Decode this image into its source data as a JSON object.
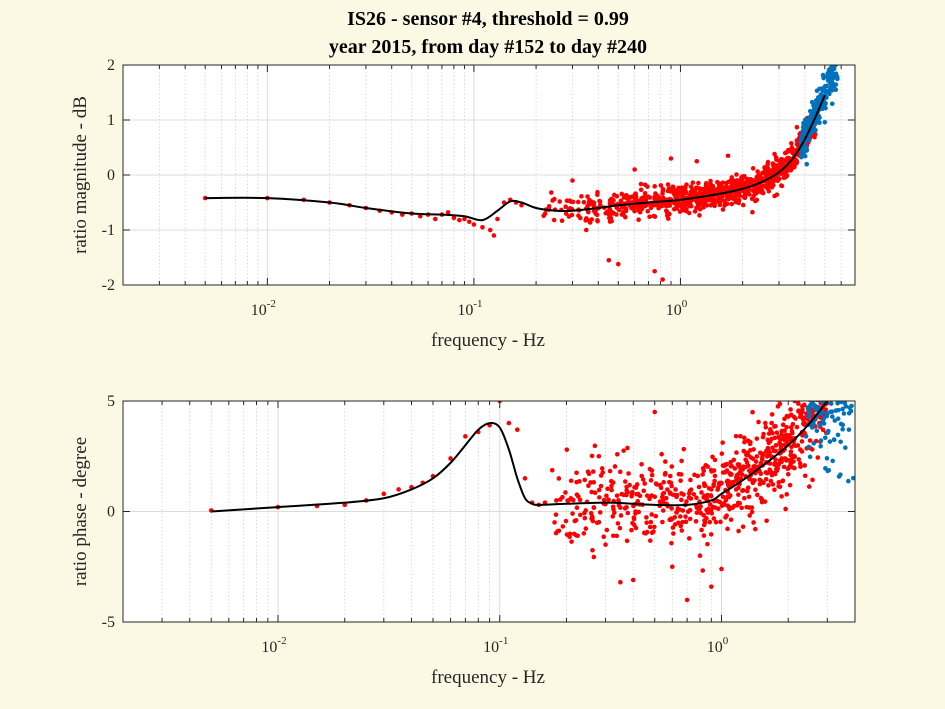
{
  "figure": {
    "title_line1": "IS26 - sensor #4, threshold = 0.99",
    "title_line2": "year 2015, from day #152 to day #240"
  },
  "colors": {
    "background": "#fbf9e3",
    "axes_background": "#ffffff",
    "red_points": "#ff0000",
    "blue_points": "#0072bd",
    "fit_line": "#000000"
  },
  "chart_data": [
    {
      "type": "scatter",
      "xscale": "log",
      "xlabel": "frequency - Hz",
      "ylabel": "ratio magnitude - dB",
      "xlim": [
        0.002,
        7
      ],
      "ylim": [
        -2,
        2
      ],
      "xticks": [
        0.01,
        0.1,
        1
      ],
      "xtick_labels": [
        {
          "base": "10",
          "exp": "-2"
        },
        {
          "base": "10",
          "exp": "-1"
        },
        {
          "base": "10",
          "exp": "0"
        }
      ],
      "yticks": [
        -2,
        -1,
        0,
        1,
        2
      ],
      "ytick_labels": [
        "-2",
        "-1",
        "0",
        "1",
        "2"
      ],
      "grid": true,
      "fit_curve": {
        "color": "black",
        "x": [
          0.005,
          0.01,
          0.02,
          0.03,
          0.05,
          0.07,
          0.09,
          0.11,
          0.13,
          0.15,
          0.17,
          0.2,
          0.25,
          0.3,
          0.4,
          0.5,
          0.7,
          1.0,
          1.5,
          2.0,
          2.5,
          3.0,
          3.5,
          4.0,
          4.5,
          5.0
        ],
        "y": [
          -0.42,
          -0.42,
          -0.5,
          -0.6,
          -0.7,
          -0.72,
          -0.75,
          -0.82,
          -0.65,
          -0.48,
          -0.5,
          -0.6,
          -0.65,
          -0.65,
          -0.6,
          -0.55,
          -0.5,
          -0.45,
          -0.35,
          -0.25,
          -0.12,
          0.05,
          0.3,
          0.65,
          1.05,
          1.45
        ]
      },
      "low_freq_points": {
        "color": "red",
        "x": [
          0.005,
          0.01,
          0.015,
          0.02,
          0.025,
          0.03,
          0.035,
          0.04,
          0.045,
          0.05,
          0.055,
          0.06,
          0.065,
          0.07,
          0.075,
          0.08,
          0.085,
          0.09,
          0.095,
          0.1,
          0.11,
          0.12,
          0.125,
          0.13,
          0.14,
          0.15,
          0.16,
          0.17
        ],
        "y": [
          -0.42,
          -0.42,
          -0.45,
          -0.5,
          -0.55,
          -0.6,
          -0.65,
          -0.68,
          -0.72,
          -0.7,
          -0.75,
          -0.72,
          -0.8,
          -0.72,
          -0.68,
          -0.78,
          -0.82,
          -0.8,
          -0.85,
          -0.9,
          -0.95,
          -1.0,
          -1.1,
          -0.8,
          -0.5,
          -0.45,
          -0.5,
          -0.55
        ]
      },
      "scatter_red": {
        "color": "red",
        "n": 900,
        "x_range": [
          0.2,
          4.5
        ],
        "outliers": [
          [
            0.45,
            -1.55
          ],
          [
            0.5,
            -1.62
          ],
          [
            0.75,
            -1.75
          ],
          [
            0.82,
            -1.9
          ],
          [
            0.35,
            -1.0
          ],
          [
            0.9,
            0.3
          ],
          [
            0.6,
            0.1
          ],
          [
            0.3,
            -0.1
          ],
          [
            1.2,
            0.25
          ],
          [
            1.7,
            0.35
          ]
        ]
      },
      "scatter_blue": {
        "color": "blue",
        "n": 180,
        "x_range": [
          3.8,
          5.8
        ],
        "y_range": [
          0.5,
          2.0
        ]
      }
    },
    {
      "type": "scatter",
      "xscale": "log",
      "xlabel": "frequency - Hz",
      "ylabel": "ratio phase - degree",
      "xlim": [
        0.002,
        4
      ],
      "ylim": [
        -5,
        5
      ],
      "xticks": [
        0.01,
        0.1,
        1
      ],
      "xtick_labels": [
        {
          "base": "10",
          "exp": "-2"
        },
        {
          "base": "10",
          "exp": "-1"
        },
        {
          "base": "10",
          "exp": "0"
        }
      ],
      "yticks": [
        -5,
        0,
        5
      ],
      "ytick_labels": [
        "-5",
        "0",
        "5"
      ],
      "grid": true,
      "fit_curve": {
        "color": "black",
        "x": [
          0.005,
          0.01,
          0.02,
          0.03,
          0.04,
          0.05,
          0.06,
          0.07,
          0.08,
          0.09,
          0.1,
          0.11,
          0.12,
          0.13,
          0.14,
          0.15,
          0.2,
          0.3,
          0.4,
          0.5,
          0.7,
          0.9,
          1.0,
          1.2,
          1.5,
          2.0,
          2.5,
          3.0
        ],
        "y": [
          0.0,
          0.2,
          0.4,
          0.6,
          1.0,
          1.5,
          2.2,
          3.0,
          3.7,
          4.0,
          3.8,
          2.8,
          1.5,
          0.6,
          0.35,
          0.3,
          0.35,
          0.4,
          0.35,
          0.3,
          0.3,
          0.5,
          0.8,
          1.3,
          2.0,
          3.0,
          4.0,
          5.0
        ]
      },
      "low_freq_points": {
        "color": "red",
        "x": [
          0.005,
          0.01,
          0.015,
          0.02,
          0.025,
          0.03,
          0.035,
          0.04,
          0.045,
          0.05,
          0.06,
          0.07,
          0.08,
          0.09,
          0.1,
          0.11,
          0.12,
          0.13,
          0.14,
          0.15,
          0.16,
          0.18
        ],
        "y": [
          0.05,
          0.2,
          0.25,
          0.3,
          0.5,
          0.8,
          1.0,
          1.1,
          1.3,
          1.6,
          2.4,
          3.4,
          3.6,
          3.9,
          5.0,
          4.0,
          3.7,
          1.5,
          0.4,
          0.3,
          0.4,
          0.5
        ]
      },
      "scatter_red": {
        "color": "red",
        "n": 750,
        "x_range": [
          0.15,
          3.0
        ],
        "outliers": [
          [
            0.35,
            -3.2
          ],
          [
            0.4,
            -3.1
          ],
          [
            0.5,
            4.5
          ],
          [
            0.7,
            -4.0
          ],
          [
            0.8,
            -2.0
          ],
          [
            0.9,
            -3.4
          ],
          [
            0.6,
            -2.5
          ],
          [
            1.0,
            -2.6
          ],
          [
            0.3,
            -1.5
          ],
          [
            0.28,
            2.5
          ],
          [
            0.25,
            1.8
          ]
        ]
      },
      "scatter_blue": {
        "color": "blue",
        "n": 80,
        "x_range": [
          2.4,
          4.0
        ],
        "y_range": [
          1.0,
          5.0
        ]
      }
    }
  ]
}
